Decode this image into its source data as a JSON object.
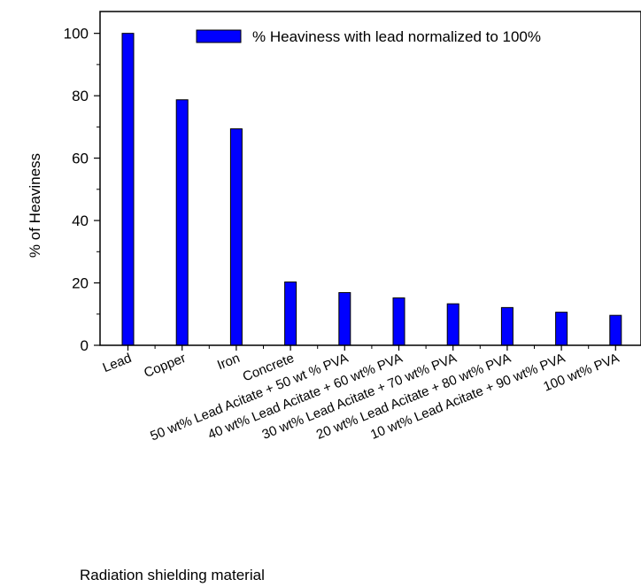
{
  "chart_data": {
    "type": "bar",
    "categories": [
      "Lead",
      "Copper",
      "Iron",
      "Concrete",
      "50 wt%  Lead Acitate + 50 wt % PVA",
      "40 wt%  Lead Acitate + 60 wt% PVA",
      "30 wt%  Lead Acitate + 70 wt% PVA",
      "20 wt%  Lead Acitate + 80 wt% PVA",
      "10 wt% Lead Acitate + 90 wt% PVA",
      "100 wt% PVA"
    ],
    "series": [
      {
        "name": "% Heaviness with lead normalized to 100%",
        "color": "#0000ff",
        "values": [
          100,
          78.7,
          69.4,
          20.3,
          16.9,
          15.2,
          13.3,
          12.1,
          10.6,
          9.6
        ]
      }
    ],
    "xlabel": "Radiation shielding material",
    "ylabel": "%  of Heaviness",
    "ylim": [
      0,
      107
    ],
    "yticks": [
      0,
      20,
      40,
      60,
      80,
      100
    ],
    "grid": false,
    "legend_position": "top-right"
  }
}
